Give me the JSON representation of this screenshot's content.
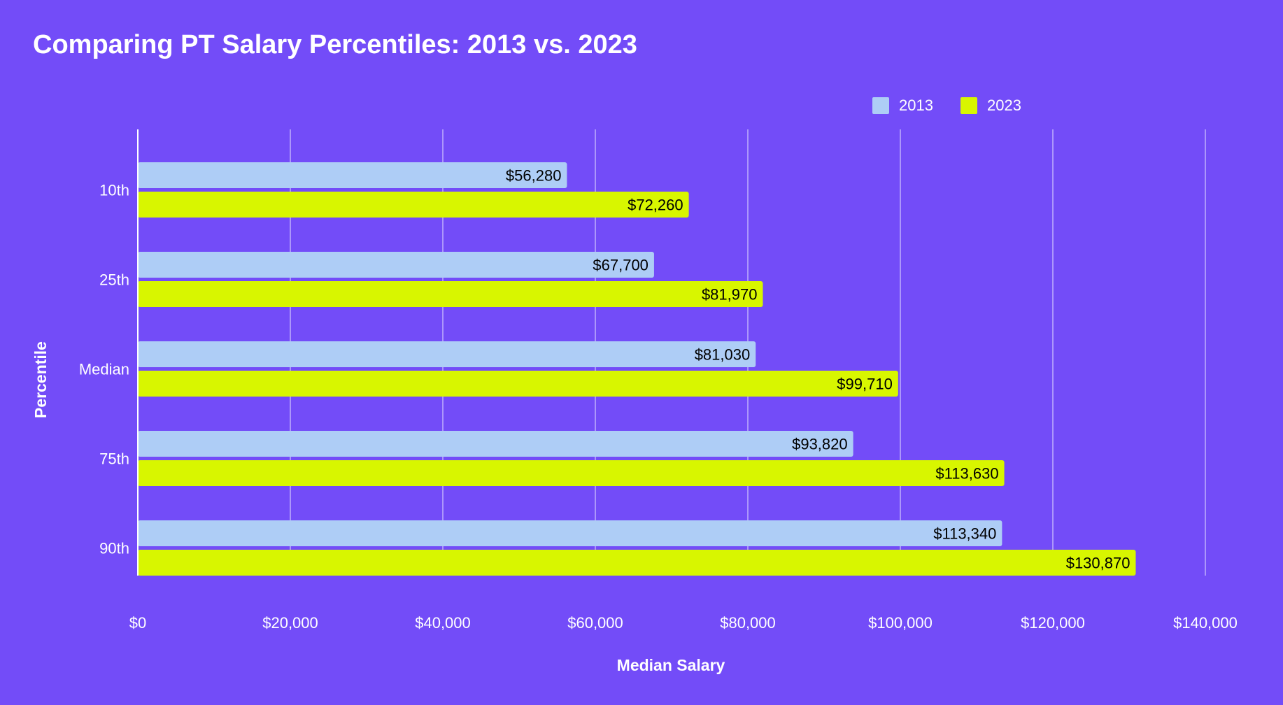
{
  "chart_data": {
    "type": "bar",
    "orientation": "horizontal",
    "title": "Comparing PT Salary Percentiles: 2013 vs. 2023",
    "xlabel": "Median Salary",
    "ylabel": "Percentile",
    "categories": [
      "10th",
      "25th",
      "Median",
      "75th",
      "90th"
    ],
    "series": [
      {
        "name": "2013",
        "color": "#aecdf6",
        "values": [
          56280,
          67700,
          81030,
          93820,
          113340
        ],
        "labels": [
          "$56,280",
          "$67,700",
          "$81,030",
          "$93,820",
          "$113,340"
        ]
      },
      {
        "name": "2023",
        "color": "#d8f600",
        "values": [
          72260,
          81970,
          99710,
          113630,
          130870
        ],
        "labels": [
          "$72,260",
          "$81,970",
          "$99,710",
          "$113,630",
          "$130,870"
        ]
      }
    ],
    "xlim": [
      0,
      140000
    ],
    "xticks": [
      0,
      20000,
      40000,
      60000,
      80000,
      100000,
      120000,
      140000
    ],
    "xtick_labels": [
      "$0",
      "$20,000",
      "$40,000",
      "$60,000",
      "$80,000",
      "$100,000",
      "$120,000",
      "$140,000"
    ],
    "grid": true,
    "legend": "top-right",
    "background": "#734cf8"
  }
}
